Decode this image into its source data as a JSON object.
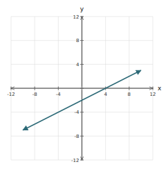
{
  "chart_data": {
    "type": "line",
    "x_label": "x",
    "y_label": "y",
    "x": [
      -10,
      10
    ],
    "series": [
      {
        "values": [
          -7,
          3
        ],
        "color": "#2e6b78"
      }
    ],
    "xlim": [
      -12,
      12
    ],
    "ylim": [
      -12,
      12
    ],
    "xticks": [
      -12,
      -8,
      -4,
      {
        "value": 0,
        "label": null
      },
      4,
      8,
      12
    ],
    "yticks": [
      -12,
      -8,
      -4,
      {
        "value": 0,
        "label": null
      },
      4,
      8,
      12
    ],
    "grid": true
  }
}
